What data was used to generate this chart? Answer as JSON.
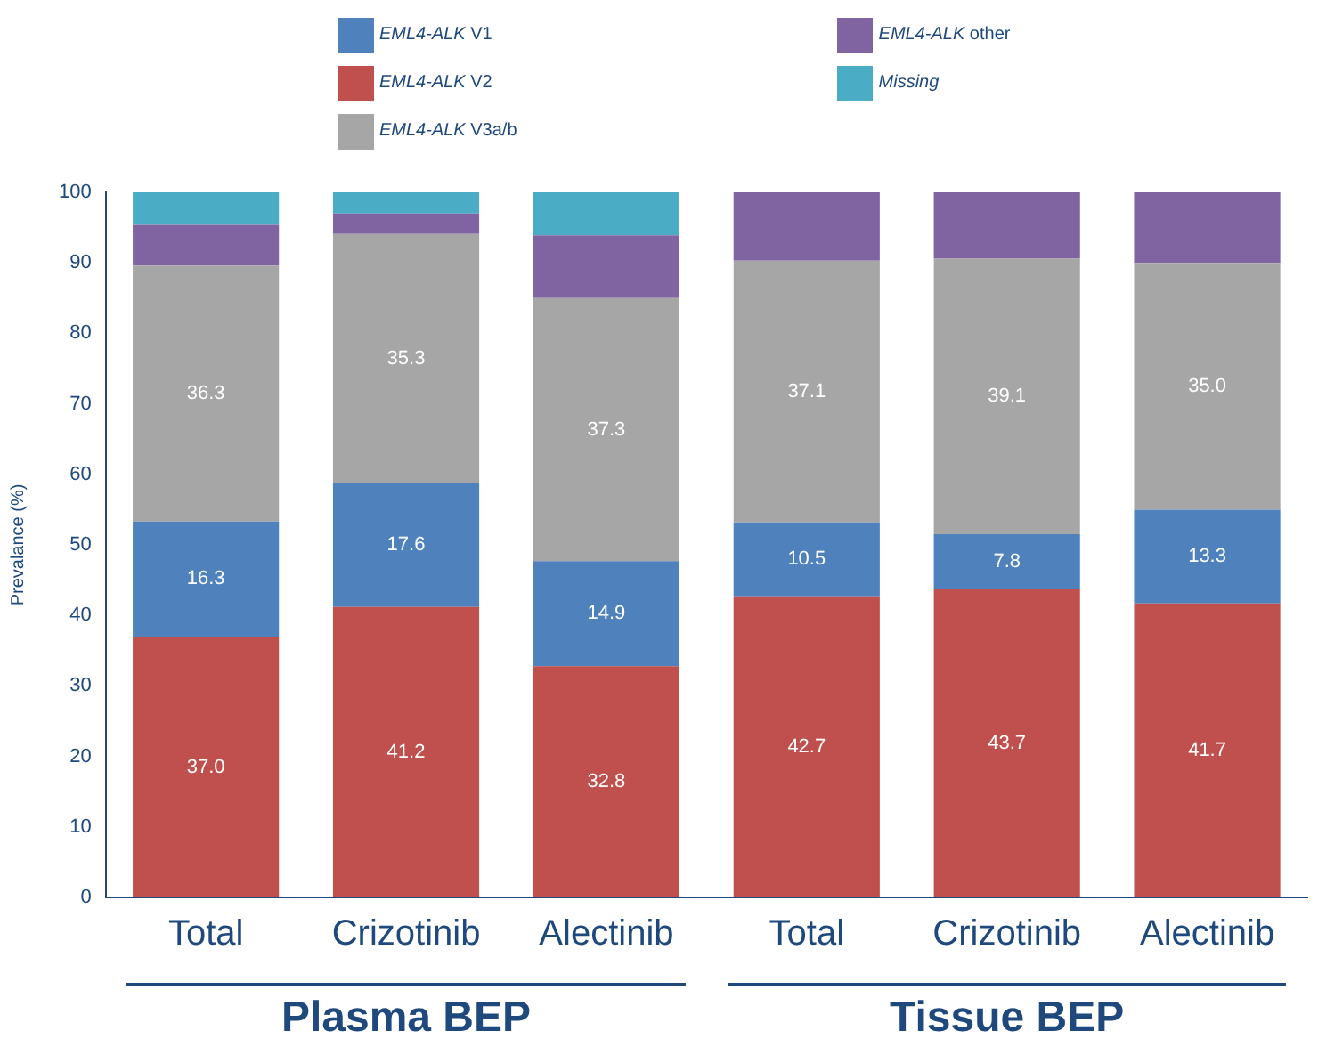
{
  "chart_data": {
    "type": "bar",
    "stacked": true,
    "ylabel": "Prevalance (%)",
    "categories": [
      "Total",
      "Crizotinib",
      "Alectinib",
      "Total",
      "Crizotinib",
      "Alectinib"
    ],
    "series": [
      {
        "name": "EML4-ALK V2",
        "color": "#c0504d",
        "values": [
          37.0,
          41.2,
          32.8,
          42.7,
          43.7,
          41.7
        ],
        "value_labels": [
          "37.0",
          "41.2",
          "32.8",
          "42.7",
          "43.7",
          "41.7"
        ]
      },
      {
        "name": "EML4-ALK V1",
        "color": "#4f81bd",
        "values": [
          16.3,
          17.6,
          14.9,
          10.5,
          7.8,
          13.3
        ],
        "value_labels": [
          "16.3",
          "17.6",
          "14.9",
          "10.5",
          "7.8",
          "13.3"
        ]
      },
      {
        "name": "EML4-ALK V3a/b",
        "color": "#a6a6a6",
        "values": [
          36.3,
          35.3,
          37.3,
          37.1,
          39.1,
          35.0
        ],
        "value_labels": [
          "36.3",
          "35.3",
          "37.3",
          "37.1",
          "39.1",
          "35.0"
        ]
      },
      {
        "name": "EML4-ALK other",
        "color": "#8064a2",
        "values": [
          5.8,
          2.9,
          8.9,
          9.7,
          9.4,
          10.0
        ]
      },
      {
        "name": "Missing",
        "color": "#4bacc6",
        "values": [
          4.6,
          3.0,
          6.1,
          0,
          0,
          0
        ]
      }
    ],
    "annotations": [
      "Plasma BEP",
      "Tissue BEP"
    ],
    "ylim": [
      0,
      100
    ],
    "yticks": [
      0,
      10,
      20,
      30,
      40,
      50,
      60,
      70,
      80,
      90,
      100
    ],
    "legend": "top",
    "grid": false
  }
}
